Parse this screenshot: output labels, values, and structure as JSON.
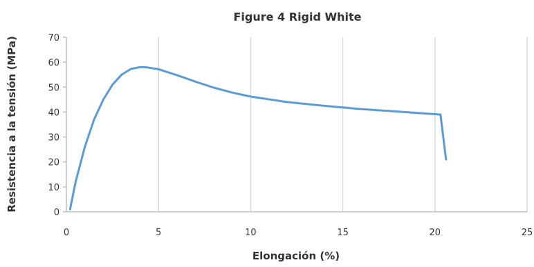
{
  "chart_data": {
    "type": "line",
    "title": "Figure 4 Rigid White",
    "xlabel": "Elongación (%)",
    "ylabel": "Resistencia a la tensión (MPa)",
    "xlim": [
      0,
      25
    ],
    "ylim": [
      0,
      70
    ],
    "x_ticks": [
      0,
      5,
      10,
      15,
      20,
      25
    ],
    "y_ticks": [
      0,
      10,
      20,
      30,
      40,
      50,
      60,
      70
    ],
    "grid": "vertical",
    "legend": "none",
    "line_color": "#5B9BD5",
    "series": [
      {
        "x": [
          0.2,
          0.5,
          1.0,
          1.5,
          2.0,
          2.5,
          3.0,
          3.5,
          4.0,
          4.3,
          5.0,
          6.0,
          7.0,
          8.0,
          9.0,
          10.0,
          12.0,
          14.0,
          16.0,
          18.0,
          20.3,
          20.6
        ],
        "values": [
          1,
          12,
          26,
          37,
          45,
          51,
          55,
          57.3,
          58,
          58,
          57.2,
          54.8,
          52.2,
          49.8,
          47.8,
          46.2,
          44,
          42.5,
          41.2,
          40.2,
          39,
          21
        ]
      }
    ]
  }
}
